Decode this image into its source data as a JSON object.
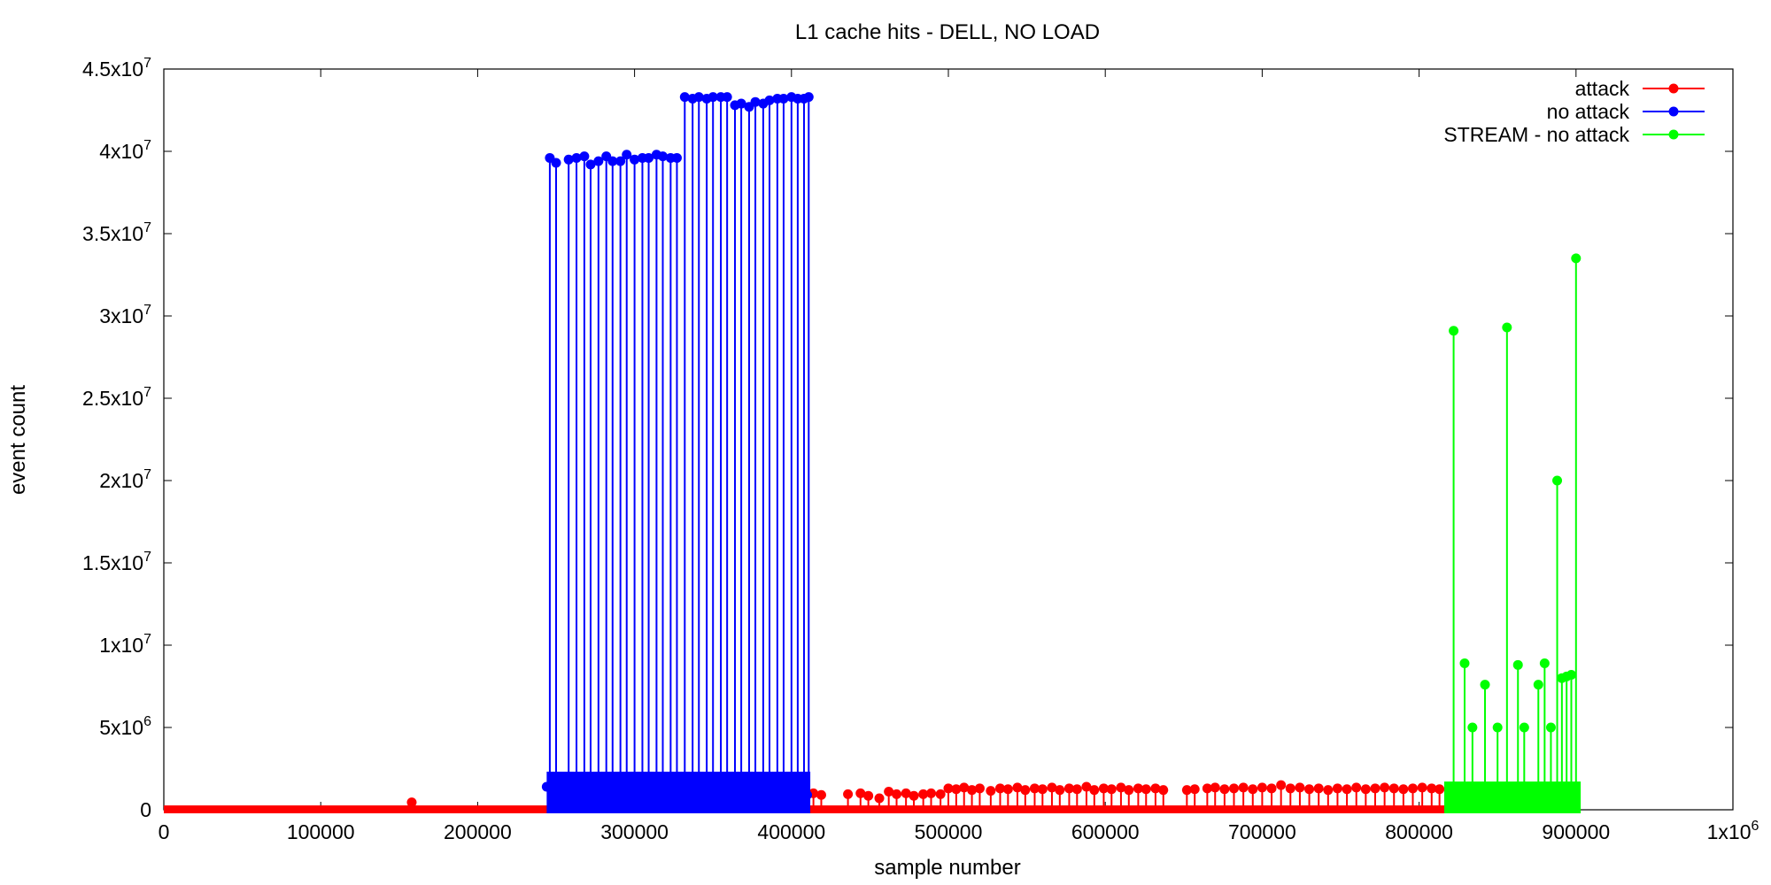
{
  "chart_data": {
    "type": "line",
    "title": "L1 cache hits - DELL, NO LOAD",
    "xlabel": "sample number",
    "ylabel": "event count",
    "xlim": [
      0,
      1000000
    ],
    "ylim": [
      0,
      45000000
    ],
    "grid": false,
    "legend_position": "top-right",
    "x_ticks": [
      {
        "value": 0,
        "label": "0"
      },
      {
        "value": 100000,
        "label": "100000"
      },
      {
        "value": 200000,
        "label": "200000"
      },
      {
        "value": 300000,
        "label": "300000"
      },
      {
        "value": 400000,
        "label": "400000"
      },
      {
        "value": 500000,
        "label": "500000"
      },
      {
        "value": 600000,
        "label": "600000"
      },
      {
        "value": 700000,
        "label": "700000"
      },
      {
        "value": 800000,
        "label": "800000"
      },
      {
        "value": 900000,
        "label": "900000"
      },
      {
        "value": 1000000,
        "label": "1x10",
        "sup": "6"
      }
    ],
    "y_ticks": [
      {
        "value": 0,
        "label": "0"
      },
      {
        "value": 5000000,
        "label": "5x10",
        "sup": "6"
      },
      {
        "value": 10000000,
        "label": "1x10",
        "sup": "7"
      },
      {
        "value": 15000000,
        "label": "1.5x10",
        "sup": "7"
      },
      {
        "value": 20000000,
        "label": "2x10",
        "sup": "7"
      },
      {
        "value": 25000000,
        "label": "2.5x10",
        "sup": "7"
      },
      {
        "value": 30000000,
        "label": "3x10",
        "sup": "7"
      },
      {
        "value": 35000000,
        "label": "3.5x10",
        "sup": "7"
      },
      {
        "value": 40000000,
        "label": "4x10",
        "sup": "7"
      },
      {
        "value": 45000000,
        "label": "4.5x10",
        "sup": "7"
      }
    ],
    "series": [
      {
        "name": "attack",
        "color": "#ff0000",
        "segments": [
          {
            "x_start": 0,
            "x_end": 246000,
            "baseline": 50000
          },
          {
            "x_start": 410000,
            "x_end": 818000,
            "baseline": 50000
          }
        ],
        "spikes": [
          {
            "x": 158000,
            "y": 450000
          },
          {
            "x": 414000,
            "y": 1000000
          },
          {
            "x": 419000,
            "y": 900000
          },
          {
            "x": 436000,
            "y": 950000
          },
          {
            "x": 444000,
            "y": 1000000
          },
          {
            "x": 449000,
            "y": 850000
          },
          {
            "x": 456000,
            "y": 700000
          },
          {
            "x": 462000,
            "y": 1100000
          },
          {
            "x": 467000,
            "y": 950000
          },
          {
            "x": 473000,
            "y": 1000000
          },
          {
            "x": 478000,
            "y": 850000
          },
          {
            "x": 484000,
            "y": 950000
          },
          {
            "x": 489000,
            "y": 1000000
          },
          {
            "x": 495000,
            "y": 950000
          },
          {
            "x": 500000,
            "y": 1300000
          },
          {
            "x": 505000,
            "y": 1250000
          },
          {
            "x": 510000,
            "y": 1350000
          },
          {
            "x": 515000,
            "y": 1200000
          },
          {
            "x": 520000,
            "y": 1300000
          },
          {
            "x": 527000,
            "y": 1150000
          },
          {
            "x": 533000,
            "y": 1300000
          },
          {
            "x": 538000,
            "y": 1250000
          },
          {
            "x": 544000,
            "y": 1350000
          },
          {
            "x": 549000,
            "y": 1200000
          },
          {
            "x": 555000,
            "y": 1300000
          },
          {
            "x": 560000,
            "y": 1250000
          },
          {
            "x": 566000,
            "y": 1350000
          },
          {
            "x": 571000,
            "y": 1200000
          },
          {
            "x": 577000,
            "y": 1300000
          },
          {
            "x": 582000,
            "y": 1250000
          },
          {
            "x": 588000,
            "y": 1400000
          },
          {
            "x": 593000,
            "y": 1200000
          },
          {
            "x": 599000,
            "y": 1300000
          },
          {
            "x": 604000,
            "y": 1250000
          },
          {
            "x": 610000,
            "y": 1350000
          },
          {
            "x": 615000,
            "y": 1200000
          },
          {
            "x": 621000,
            "y": 1300000
          },
          {
            "x": 626000,
            "y": 1250000
          },
          {
            "x": 632000,
            "y": 1300000
          },
          {
            "x": 637000,
            "y": 1200000
          },
          {
            "x": 652000,
            "y": 1200000
          },
          {
            "x": 657000,
            "y": 1250000
          },
          {
            "x": 665000,
            "y": 1300000
          },
          {
            "x": 670000,
            "y": 1350000
          },
          {
            "x": 676000,
            "y": 1250000
          },
          {
            "x": 682000,
            "y": 1300000
          },
          {
            "x": 688000,
            "y": 1350000
          },
          {
            "x": 694000,
            "y": 1250000
          },
          {
            "x": 700000,
            "y": 1350000
          },
          {
            "x": 706000,
            "y": 1300000
          },
          {
            "x": 712000,
            "y": 1500000
          },
          {
            "x": 718000,
            "y": 1300000
          },
          {
            "x": 724000,
            "y": 1350000
          },
          {
            "x": 730000,
            "y": 1250000
          },
          {
            "x": 736000,
            "y": 1300000
          },
          {
            "x": 742000,
            "y": 1200000
          },
          {
            "x": 748000,
            "y": 1300000
          },
          {
            "x": 754000,
            "y": 1250000
          },
          {
            "x": 760000,
            "y": 1350000
          },
          {
            "x": 766000,
            "y": 1250000
          },
          {
            "x": 772000,
            "y": 1300000
          },
          {
            "x": 778000,
            "y": 1350000
          },
          {
            "x": 784000,
            "y": 1300000
          },
          {
            "x": 790000,
            "y": 1250000
          },
          {
            "x": 796000,
            "y": 1300000
          },
          {
            "x": 802000,
            "y": 1350000
          },
          {
            "x": 808000,
            "y": 1300000
          },
          {
            "x": 813000,
            "y": 1250000
          }
        ]
      },
      {
        "name": "no attack",
        "color": "#0000ff",
        "segments": [
          {
            "x_start": 244000,
            "x_end": 412000,
            "baseline": 2100000
          }
        ],
        "spikes": [
          {
            "x": 246000,
            "y": 39600000
          },
          {
            "x": 250000,
            "y": 39300000
          },
          {
            "x": 258000,
            "y": 39500000
          },
          {
            "x": 263000,
            "y": 39600000
          },
          {
            "x": 268000,
            "y": 39700000
          },
          {
            "x": 272000,
            "y": 39200000
          },
          {
            "x": 277000,
            "y": 39400000
          },
          {
            "x": 282000,
            "y": 39700000
          },
          {
            "x": 286000,
            "y": 39400000
          },
          {
            "x": 291000,
            "y": 39400000
          },
          {
            "x": 295000,
            "y": 39800000
          },
          {
            "x": 300000,
            "y": 39500000
          },
          {
            "x": 305000,
            "y": 39600000
          },
          {
            "x": 309000,
            "y": 39600000
          },
          {
            "x": 314000,
            "y": 39800000
          },
          {
            "x": 318000,
            "y": 39700000
          },
          {
            "x": 323000,
            "y": 39600000
          },
          {
            "x": 327000,
            "y": 39600000
          },
          {
            "x": 332000,
            "y": 43300000
          },
          {
            "x": 337000,
            "y": 43200000
          },
          {
            "x": 341000,
            "y": 43300000
          },
          {
            "x": 346000,
            "y": 43200000
          },
          {
            "x": 350000,
            "y": 43300000
          },
          {
            "x": 355000,
            "y": 43300000
          },
          {
            "x": 359000,
            "y": 43300000
          },
          {
            "x": 364000,
            "y": 42800000
          },
          {
            "x": 368000,
            "y": 42900000
          },
          {
            "x": 373000,
            "y": 42700000
          },
          {
            "x": 377000,
            "y": 43000000
          },
          {
            "x": 382000,
            "y": 42900000
          },
          {
            "x": 386000,
            "y": 43100000
          },
          {
            "x": 391000,
            "y": 43200000
          },
          {
            "x": 395000,
            "y": 43200000
          },
          {
            "x": 400000,
            "y": 43300000
          },
          {
            "x": 404000,
            "y": 43200000
          },
          {
            "x": 408000,
            "y": 43200000
          },
          {
            "x": 411000,
            "y": 43300000
          }
        ],
        "dips": [
          {
            "x": 244000,
            "y": 1400000
          },
          {
            "x": 326000,
            "y": 600000
          },
          {
            "x": 410000,
            "y": 900000
          }
        ]
      },
      {
        "name": "STREAM - no attack",
        "color": "#00ff00",
        "segments": [
          {
            "x_start": 816000,
            "x_end": 903000,
            "baseline": 1500000
          }
        ],
        "spikes": [
          {
            "x": 822000,
            "y": 29100000
          },
          {
            "x": 829000,
            "y": 8900000
          },
          {
            "x": 834000,
            "y": 5000000
          },
          {
            "x": 842000,
            "y": 7600000
          },
          {
            "x": 850000,
            "y": 5000000
          },
          {
            "x": 856000,
            "y": 29300000
          },
          {
            "x": 863000,
            "y": 8800000
          },
          {
            "x": 867000,
            "y": 5000000
          },
          {
            "x": 876000,
            "y": 7600000
          },
          {
            "x": 880000,
            "y": 8900000
          },
          {
            "x": 884000,
            "y": 5000000
          },
          {
            "x": 888000,
            "y": 20000000
          },
          {
            "x": 891000,
            "y": 8000000
          },
          {
            "x": 894000,
            "y": 8100000
          },
          {
            "x": 897000,
            "y": 8200000
          },
          {
            "x": 900000,
            "y": 33500000
          }
        ]
      }
    ]
  }
}
